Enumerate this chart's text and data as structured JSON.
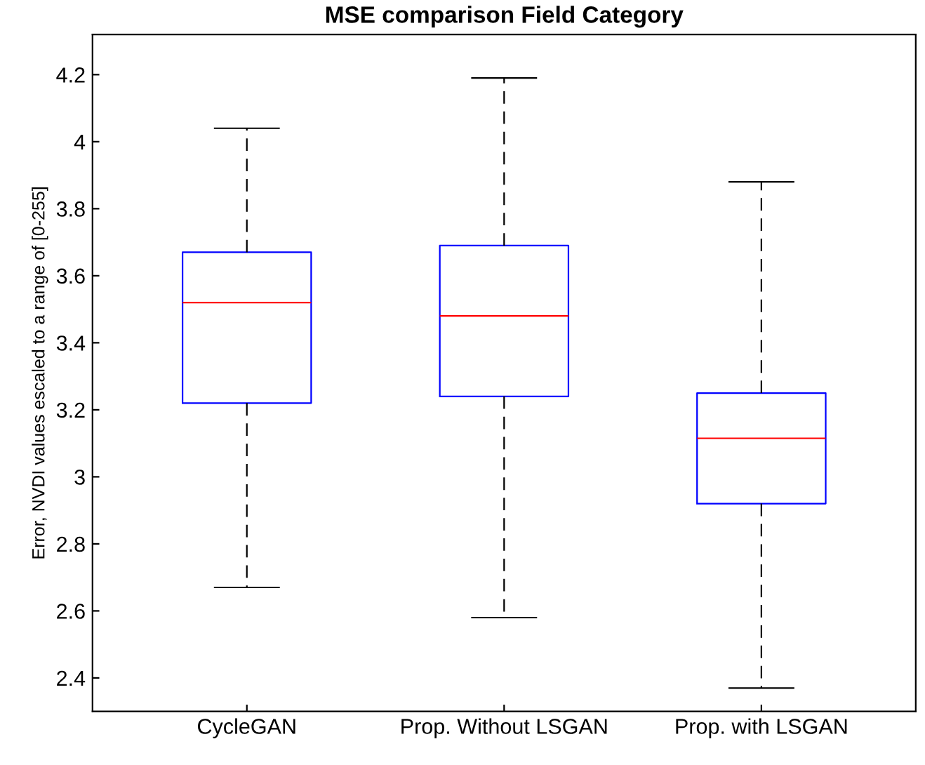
{
  "chart_data": {
    "type": "box",
    "title": "MSE comparison Field Category",
    "ylabel": "Error, NVDI values escaled to a range of [0-255]",
    "categories": [
      "CycleGAN",
      "Prop. Without LSGAN",
      "Prop. with LSGAN"
    ],
    "series": [
      {
        "color": "#0000ff",
        "boxes": [
          {
            "low": 2.67,
            "q1": 3.22,
            "median": 3.52,
            "q3": 3.67,
            "high": 4.04
          },
          {
            "low": 2.58,
            "q1": 3.24,
            "median": 3.48,
            "q3": 3.69,
            "high": 4.19
          },
          {
            "low": 2.37,
            "q1": 2.92,
            "median": 3.115,
            "q3": 3.25,
            "high": 3.88
          }
        ]
      }
    ],
    "ylim": [
      2.3,
      4.32
    ],
    "yticks": [
      2.4,
      2.6,
      2.8,
      3,
      3.2,
      3.4,
      3.6,
      3.8,
      4,
      4.2
    ],
    "grid": false
  }
}
